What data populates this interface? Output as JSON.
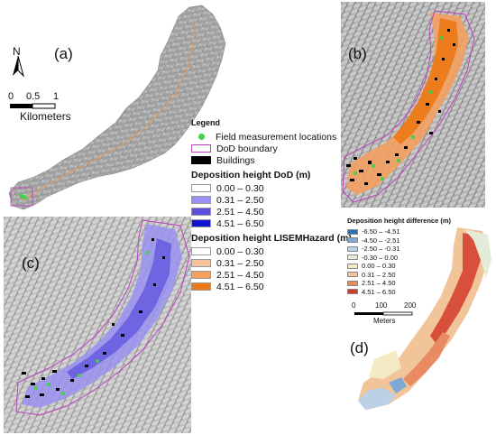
{
  "panels": {
    "a": "(a)",
    "b": "(b)",
    "c": "(c)",
    "d": "(d)"
  },
  "north_arrow": "N",
  "scale_km": {
    "ticks": [
      "0",
      "0.5",
      "1"
    ],
    "unit": "Kilometers"
  },
  "scale_m": {
    "ticks": [
      "0",
      "100",
      "200"
    ],
    "unit": "Meters"
  },
  "legend": {
    "title": "Legend",
    "field": "Field measurement locations",
    "dod_boundary": "DoD boundary",
    "buildings": "Buildings",
    "dod_title": "Deposition height DoD (m)",
    "dod_classes": [
      {
        "label": "0.00 – 0.30",
        "color": "#ffffff"
      },
      {
        "label": "0.31 – 2.50",
        "color": "#9a92f0"
      },
      {
        "label": "2.51 – 4.50",
        "color": "#5a4fe0"
      },
      {
        "label": "4.51 – 6.50",
        "color": "#1014d0"
      }
    ],
    "lisem_title": "Deposition height LISEMHazard (m)",
    "lisem_classes": [
      {
        "label": "0.00 – 0.30",
        "color": "#ffffff"
      },
      {
        "label": "0.31 – 2.50",
        "color": "#f7c39a"
      },
      {
        "label": "2.51 – 4.50",
        "color": "#f2a060"
      },
      {
        "label": "4.51 – 6.50",
        "color": "#ec7a18"
      }
    ]
  },
  "diff_legend": {
    "title": "Deposition height difference (m)",
    "classes": [
      {
        "label": "-6.50 – -4.51",
        "color": "#2f6fb8"
      },
      {
        "label": "-4.50 – -2.51",
        "color": "#7fa8d4"
      },
      {
        "label": "-2.50 – -0.31",
        "color": "#bcd0e6"
      },
      {
        "label": "-0.30 – 0.00",
        "color": "#e4ecd8"
      },
      {
        "label": "0.00 – 0.30",
        "color": "#f4eac4"
      },
      {
        "label": "0.31 – 2.50",
        "color": "#f2c49a"
      },
      {
        "label": "2.51 – 4.50",
        "color": "#e88a62"
      },
      {
        "label": "4.51 – 6.50",
        "color": "#d43c2a"
      }
    ]
  }
}
